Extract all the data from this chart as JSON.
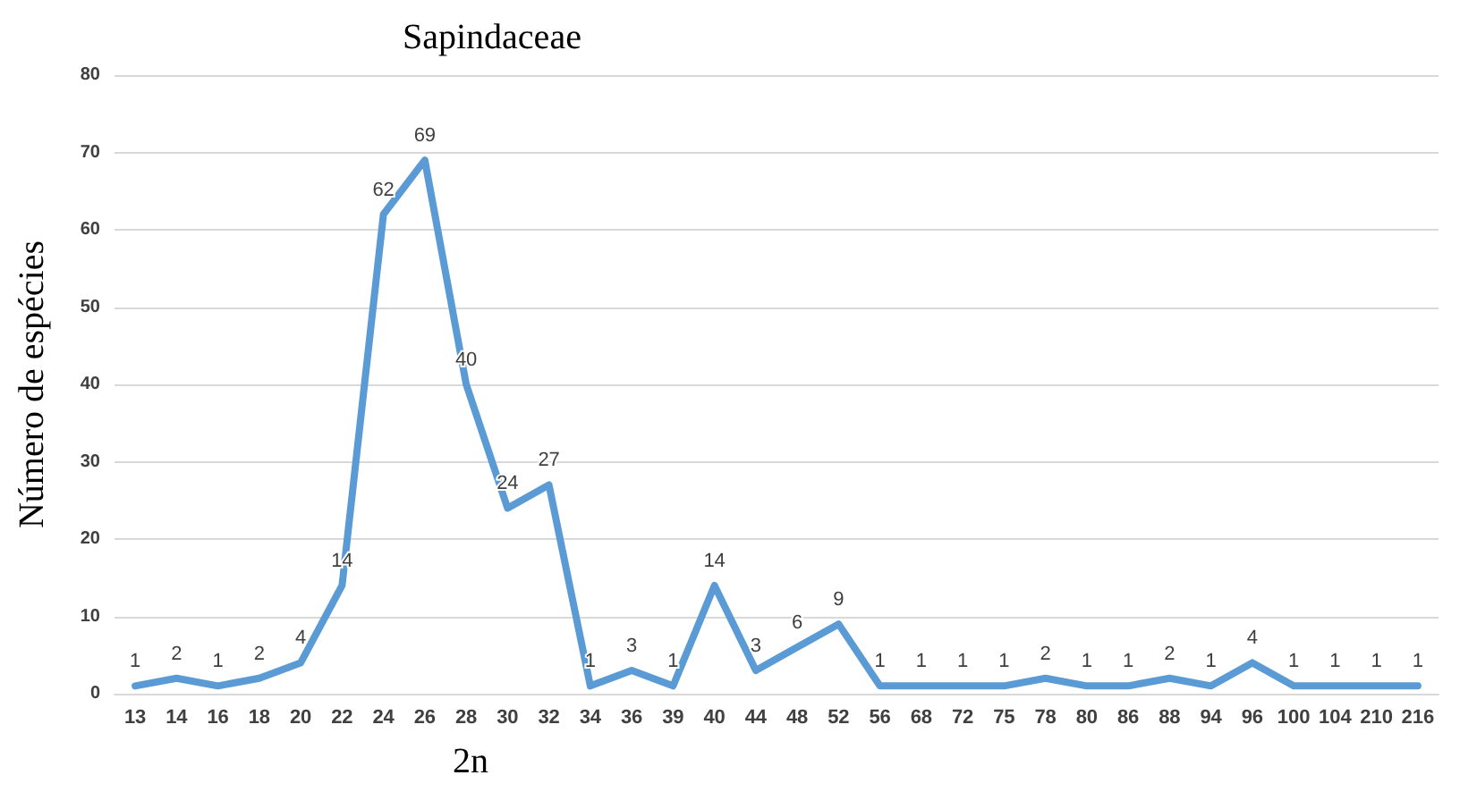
{
  "chart_data": {
    "type": "line",
    "title": "Sapindaceae",
    "xlabel": "2n",
    "ylabel": "Número de espécies",
    "categories": [
      "13",
      "14",
      "16",
      "18",
      "20",
      "22",
      "24",
      "26",
      "28",
      "30",
      "32",
      "34",
      "36",
      "39",
      "40",
      "44",
      "48",
      "52",
      "56",
      "68",
      "72",
      "75",
      "78",
      "80",
      "86",
      "88",
      "94",
      "96",
      "100",
      "104",
      "210",
      "216"
    ],
    "series": [
      {
        "color": "#5b9bd5",
        "values": [
          1,
          2,
          1,
          2,
          4,
          14,
          62,
          69,
          40,
          24,
          27,
          1,
          3,
          1,
          14,
          3,
          6,
          9,
          1,
          1,
          1,
          1,
          2,
          1,
          1,
          2,
          1,
          4,
          1,
          1,
          1,
          1
        ]
      }
    ],
    "ylim": [
      0,
      80
    ],
    "yticks": [
      0,
      10,
      20,
      30,
      40,
      50,
      60,
      70,
      80
    ],
    "grid": "y",
    "data_labels": true,
    "marker": "none",
    "line_style": "solid"
  }
}
